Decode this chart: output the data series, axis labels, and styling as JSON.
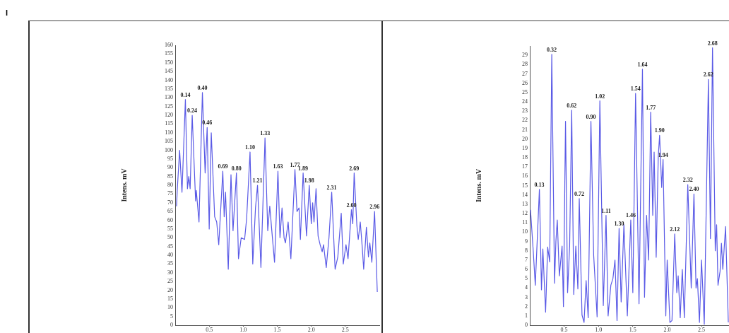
{
  "chart_data": [
    {
      "type": "line",
      "ylabel": "Intens. mV",
      "color": "#5a5ae6",
      "marker": "none",
      "line_style": "solid",
      "grid": false,
      "legend": false,
      "annotations": [
        "I",
        {
          "text": "0.14",
          "x": 0.15,
          "y": 129
        },
        {
          "text": "0.24",
          "x": 0.25,
          "y": 120
        },
        {
          "text": "0.40",
          "x": 0.4,
          "y": 133
        },
        {
          "text": "0.46",
          "x": 0.47,
          "y": 113
        },
        {
          "text": "0.69",
          "x": 0.7,
          "y": 88
        },
        {
          "text": "0.80",
          "x": 0.9,
          "y": 87
        },
        {
          "text": "1.10",
          "x": 1.1,
          "y": 99
        },
        {
          "text": "1.21",
          "x": 1.21,
          "y": 80
        },
        {
          "text": "1.33",
          "x": 1.32,
          "y": 107
        },
        {
          "text": "1.63",
          "x": 1.51,
          "y": 88
        },
        {
          "text": "1.77",
          "x": 1.76,
          "y": 89
        },
        {
          "text": "1.89",
          "x": 1.88,
          "y": 87
        },
        {
          "text": "1.98",
          "x": 1.97,
          "y": 80
        },
        {
          "text": "2.31",
          "x": 2.3,
          "y": 76
        },
        {
          "text": "2.60",
          "x": 2.59,
          "y": 66
        },
        {
          "text": "2.69",
          "x": 2.63,
          "y": 87
        },
        {
          "text": "2.96",
          "x": 2.93,
          "y": 65
        }
      ],
      "x": [
        0.02,
        0.03,
        0.065,
        0.085,
        0.1,
        0.15,
        0.18,
        0.2,
        0.22,
        0.25,
        0.3,
        0.31,
        0.35,
        0.4,
        0.44,
        0.47,
        0.5,
        0.53,
        0.58,
        0.61,
        0.64,
        0.7,
        0.72,
        0.74,
        0.78,
        0.82,
        0.85,
        0.9,
        0.93,
        0.97,
        1.02,
        1.05,
        1.1,
        1.14,
        1.18,
        1.21,
        1.26,
        1.32,
        1.36,
        1.39,
        1.42,
        1.46,
        1.51,
        1.54,
        1.57,
        1.6,
        1.62,
        1.66,
        1.7,
        1.76,
        1.79,
        1.82,
        1.84,
        1.88,
        1.93,
        1.97,
        2.0,
        2.02,
        2.04,
        2.07,
        2.1,
        2.13,
        2.16,
        2.18,
        2.22,
        2.26,
        2.3,
        2.35,
        2.39,
        2.44,
        2.47,
        2.51,
        2.54,
        2.59,
        2.61,
        2.63,
        2.67,
        2.69,
        2.72,
        2.75,
        2.77,
        2.81,
        2.84,
        2.86,
        2.89,
        2.93,
        2.97
      ],
      "values": [
        68,
        77,
        100,
        86,
        76,
        129,
        78,
        85,
        78,
        120,
        71,
        77,
        59,
        133,
        87,
        113,
        55,
        110,
        62,
        59,
        46,
        88,
        62,
        76,
        32,
        86,
        54,
        87,
        38,
        50,
        49,
        61,
        99,
        35,
        67,
        80,
        33,
        107,
        54,
        68,
        54,
        36,
        88,
        50,
        67,
        50,
        47,
        59,
        38,
        89,
        65,
        67,
        49,
        87,
        51,
        80,
        58,
        70,
        59,
        78,
        51,
        46,
        42,
        46,
        33,
        50,
        76,
        32,
        39,
        64,
        35,
        46,
        38,
        66,
        58,
        87,
        57,
        49,
        59,
        44,
        32,
        56,
        39,
        47,
        36,
        65,
        19
      ],
      "xlim": [
        0,
        3.0
      ],
      "xticks": [
        {
          "value": 0.5,
          "label": "0.5"
        },
        {
          "value": 1,
          "label": "1.0"
        },
        {
          "value": 1.5,
          "label": "1.5"
        },
        {
          "value": 2,
          "label": "2.0"
        },
        {
          "value": 2.5,
          "label": "2.5"
        }
      ],
      "ylim": [
        0,
        160
      ],
      "yticks": [
        0,
        5,
        10,
        15,
        20,
        25,
        30,
        35,
        40,
        45,
        50,
        55,
        60,
        65,
        70,
        75,
        80,
        85,
        90,
        95,
        100,
        105,
        110,
        115,
        120,
        125,
        130,
        135,
        140,
        145,
        150,
        155,
        160
      ]
    },
    {
      "type": "line",
      "ylabel": "Intens. mV",
      "color": "#5a5ae6",
      "marker": "none",
      "line_style": "solid",
      "grid": false,
      "legend": false,
      "annotations": [
        {
          "text": "0.13",
          "x": 0.14,
          "y": 14.6
        },
        {
          "text": "0.32",
          "x": 0.32,
          "y": 29.1
        },
        {
          "text": "0.62",
          "x": 0.61,
          "y": 23.1
        },
        {
          "text": "0.72",
          "x": 0.72,
          "y": 13.6
        },
        {
          "text": "0.90",
          "x": 0.89,
          "y": 21.9
        },
        {
          "text": "1.02",
          "x": 1.02,
          "y": 24.1
        },
        {
          "text": "1.11",
          "x": 1.11,
          "y": 11.8
        },
        {
          "text": "1.30",
          "x": 1.3,
          "y": 10.4
        },
        {
          "text": "1.46",
          "x": 1.47,
          "y": 11.3
        },
        {
          "text": "1.54",
          "x": 1.54,
          "y": 24.9
        },
        {
          "text": "1.64",
          "x": 1.64,
          "y": 27.5
        },
        {
          "text": "1.77",
          "x": 1.76,
          "y": 22.9
        },
        {
          "text": "1.90",
          "x": 1.89,
          "y": 20.4
        },
        {
          "text": "1.94",
          "x": 1.94,
          "y": 17.8
        },
        {
          "text": "2.12",
          "x": 2.11,
          "y": 9.8
        },
        {
          "text": "2.32",
          "x": 2.3,
          "y": 15.1
        },
        {
          "text": "2.40",
          "x": 2.39,
          "y": 14.1
        },
        {
          "text": "2.62",
          "x": 2.6,
          "y": 26.4
        },
        {
          "text": "2.68",
          "x": 2.66,
          "y": 29.8
        }
      ],
      "x": [
        0.01,
        0.05,
        0.08,
        0.14,
        0.17,
        0.19,
        0.23,
        0.26,
        0.29,
        0.32,
        0.36,
        0.38,
        0.4,
        0.43,
        0.47,
        0.49,
        0.52,
        0.55,
        0.58,
        0.61,
        0.64,
        0.67,
        0.7,
        0.72,
        0.76,
        0.79,
        0.82,
        0.85,
        0.89,
        0.93,
        0.98,
        1.02,
        1.07,
        1.11,
        1.14,
        1.18,
        1.21,
        1.24,
        1.27,
        1.3,
        1.33,
        1.37,
        1.42,
        1.47,
        1.5,
        1.54,
        1.59,
        1.64,
        1.67,
        1.7,
        1.73,
        1.76,
        1.79,
        1.81,
        1.84,
        1.87,
        1.89,
        1.92,
        1.94,
        1.98,
        2.0,
        2.04,
        2.07,
        2.11,
        2.14,
        2.16,
        2.19,
        2.22,
        2.25,
        2.3,
        2.35,
        2.39,
        2.42,
        2.44,
        2.47,
        2.5,
        2.54,
        2.6,
        2.63,
        2.66,
        2.7,
        2.72,
        2.74,
        2.77,
        2.79,
        2.81,
        2.85,
        2.89
      ],
      "values": [
        12.4,
        8.0,
        4.3,
        14.6,
        3.8,
        8.2,
        1.4,
        8.4,
        6.8,
        29.1,
        4.5,
        9.0,
        11.3,
        5.3,
        8.5,
        2.0,
        21.9,
        3.5,
        8.5,
        23.1,
        3.3,
        8.5,
        3.9,
        13.6,
        1.1,
        0.3,
        4.8,
        0.8,
        21.9,
        7.5,
        0.9,
        24.1,
        2.1,
        11.8,
        1.0,
        4.3,
        5.0,
        7.0,
        0.5,
        10.4,
        2.5,
        10.8,
        1.0,
        11.3,
        3.5,
        24.9,
        2.3,
        27.5,
        3.0,
        11.8,
        7.0,
        22.9,
        11.8,
        18.6,
        7.3,
        18.1,
        20.4,
        14.8,
        17.8,
        1.0,
        7.0,
        0.3,
        0.5,
        9.8,
        3.5,
        5.3,
        0.8,
        6.0,
        0.8,
        15.1,
        4.0,
        14.1,
        4.0,
        5.0,
        0.3,
        7.0,
        0.1,
        26.4,
        9.3,
        29.8,
        8.0,
        10.8,
        4.3,
        5.8,
        8.8,
        6.0,
        10.6,
        0.3
      ],
      "xlim": [
        0,
        2.9
      ],
      "xticks": [
        {
          "value": 0.5,
          "label": "0.5"
        },
        {
          "value": 1,
          "label": "1.0"
        },
        {
          "value": 1.5,
          "label": "1.5"
        },
        {
          "value": 2,
          "label": "2.0"
        },
        {
          "value": 2.5,
          "label": "2.5"
        }
      ],
      "ylim": [
        0,
        30
      ],
      "yticks": [
        0,
        1,
        2,
        3,
        4,
        5,
        6,
        7,
        8,
        9,
        10,
        11,
        12,
        13,
        14,
        15,
        16,
        17,
        18,
        19,
        20,
        21,
        22,
        23,
        24,
        25,
        26,
        27,
        28,
        29
      ]
    }
  ]
}
